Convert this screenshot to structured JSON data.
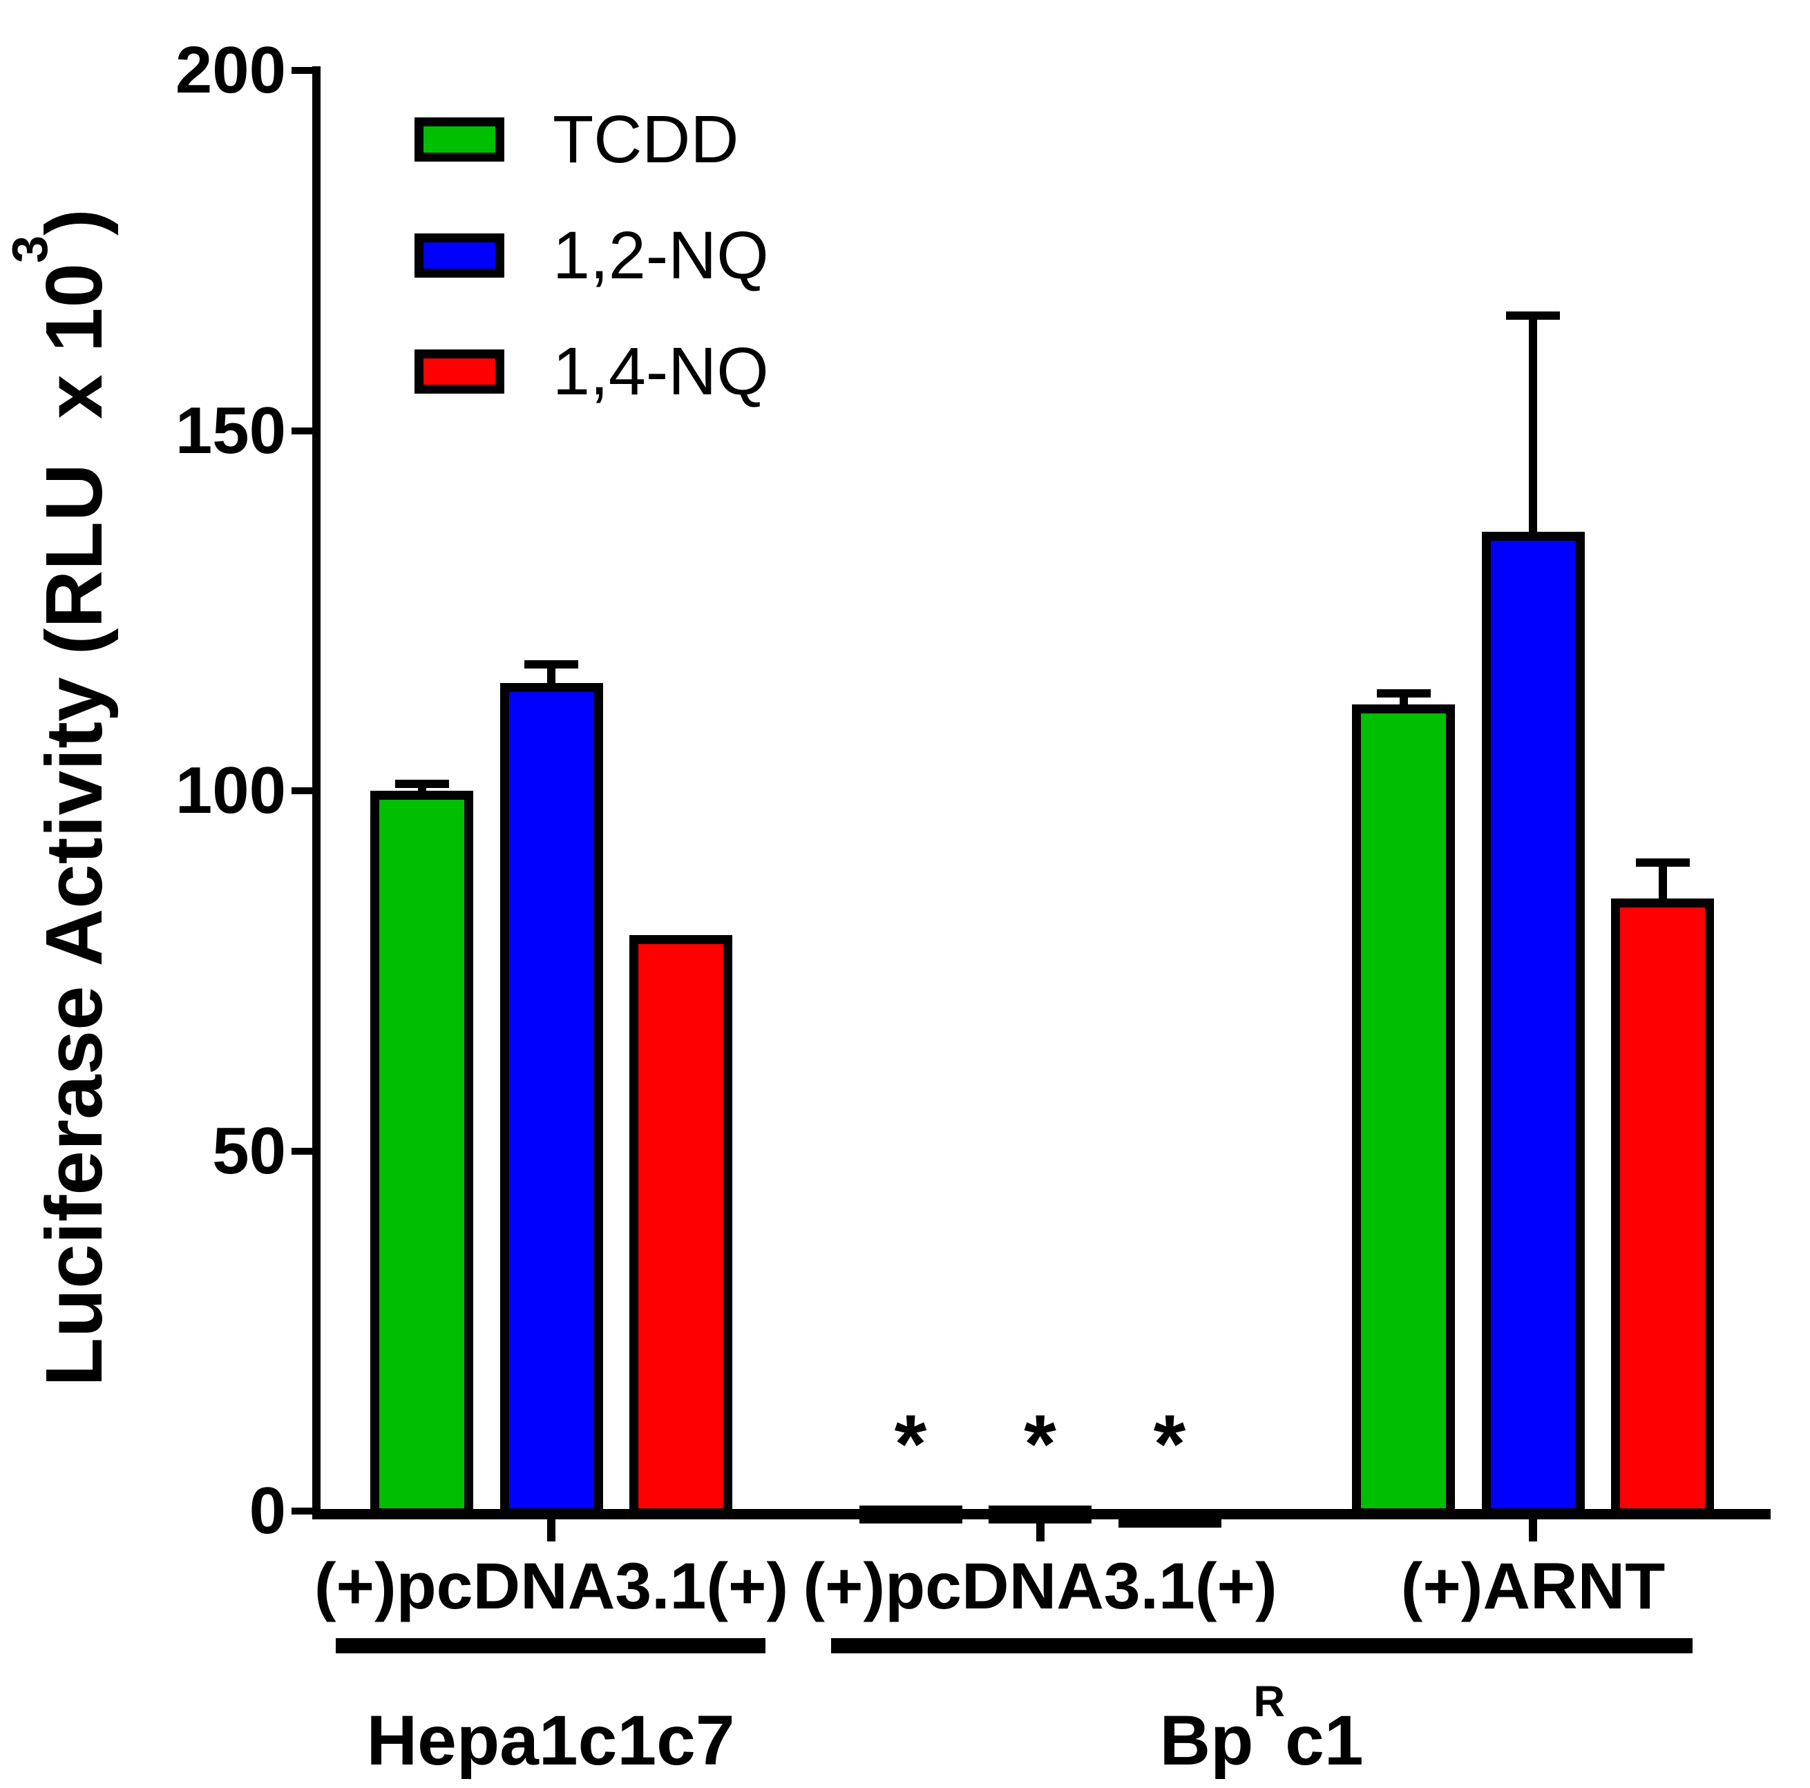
{
  "figure": {
    "background": "#ffffff",
    "ylabel_parts": {
      "prefix": "Luciferase Activity (RLU  x 10",
      "superscript": "3",
      "suffix": ")"
    }
  },
  "chart_data": {
    "type": "bar",
    "title": "",
    "xlabel": "",
    "ylabel": "Luciferase Activity (RLU x 10^3)",
    "y_axis": {
      "min": 0,
      "max": 200,
      "ticks": [
        0,
        50,
        100,
        150,
        200
      ]
    },
    "grid": false,
    "legend_position": "upper-left-inside",
    "legend": [
      {
        "label": "TCDD",
        "color": "#00BE00"
      },
      {
        "label": "1,2-NQ",
        "color": "#0000FF"
      },
      {
        "label": "1,4-NQ",
        "color": "#FF0000"
      }
    ],
    "categories": [
      "(+)pcDNA3.1(+)",
      "(+)pcDNA3.1(+)",
      "(+)ARNT"
    ],
    "groups": [
      {
        "x_label": "(+)pcDNA3.1(+)",
        "cell_line": "Hepa1c1c7",
        "bars": [
          {
            "series": "TCDD",
            "value": 100,
            "error": 1,
            "annotation": ""
          },
          {
            "series": "1,2-NQ",
            "value": 115,
            "error": 2.5,
            "annotation": ""
          },
          {
            "series": "1,4-NQ",
            "value": 80,
            "error": 0,
            "annotation": ""
          }
        ]
      },
      {
        "x_label": "(+)pcDNA3.1(+)",
        "cell_line": "BpRc1",
        "bars": [
          {
            "series": "TCDD",
            "value": 0.8,
            "error": 0,
            "annotation": "*"
          },
          {
            "series": "1,2-NQ",
            "value": 0.8,
            "error": 0,
            "annotation": "*"
          },
          {
            "series": "1,4-NQ",
            "value": 0.2,
            "error": 0,
            "annotation": "*"
          }
        ]
      },
      {
        "x_label": "(+)ARNT",
        "cell_line": "BpRc1",
        "bars": [
          {
            "series": "TCDD",
            "value": 112,
            "error": 1.5,
            "annotation": ""
          },
          {
            "series": "1,2-NQ",
            "value": 136,
            "error": 30,
            "annotation": ""
          },
          {
            "series": "1,4-NQ",
            "value": 85,
            "error": 5,
            "annotation": ""
          }
        ]
      }
    ],
    "cell_lines": [
      {
        "name": "Hepa1c1c7",
        "parts": {
          "prefix": "Hepa1c1c7",
          "superscript": "",
          "suffix": ""
        }
      },
      {
        "name": "BpRc1",
        "parts": {
          "prefix": "Bp",
          "superscript": "R",
          "suffix": "c1"
        }
      }
    ]
  }
}
